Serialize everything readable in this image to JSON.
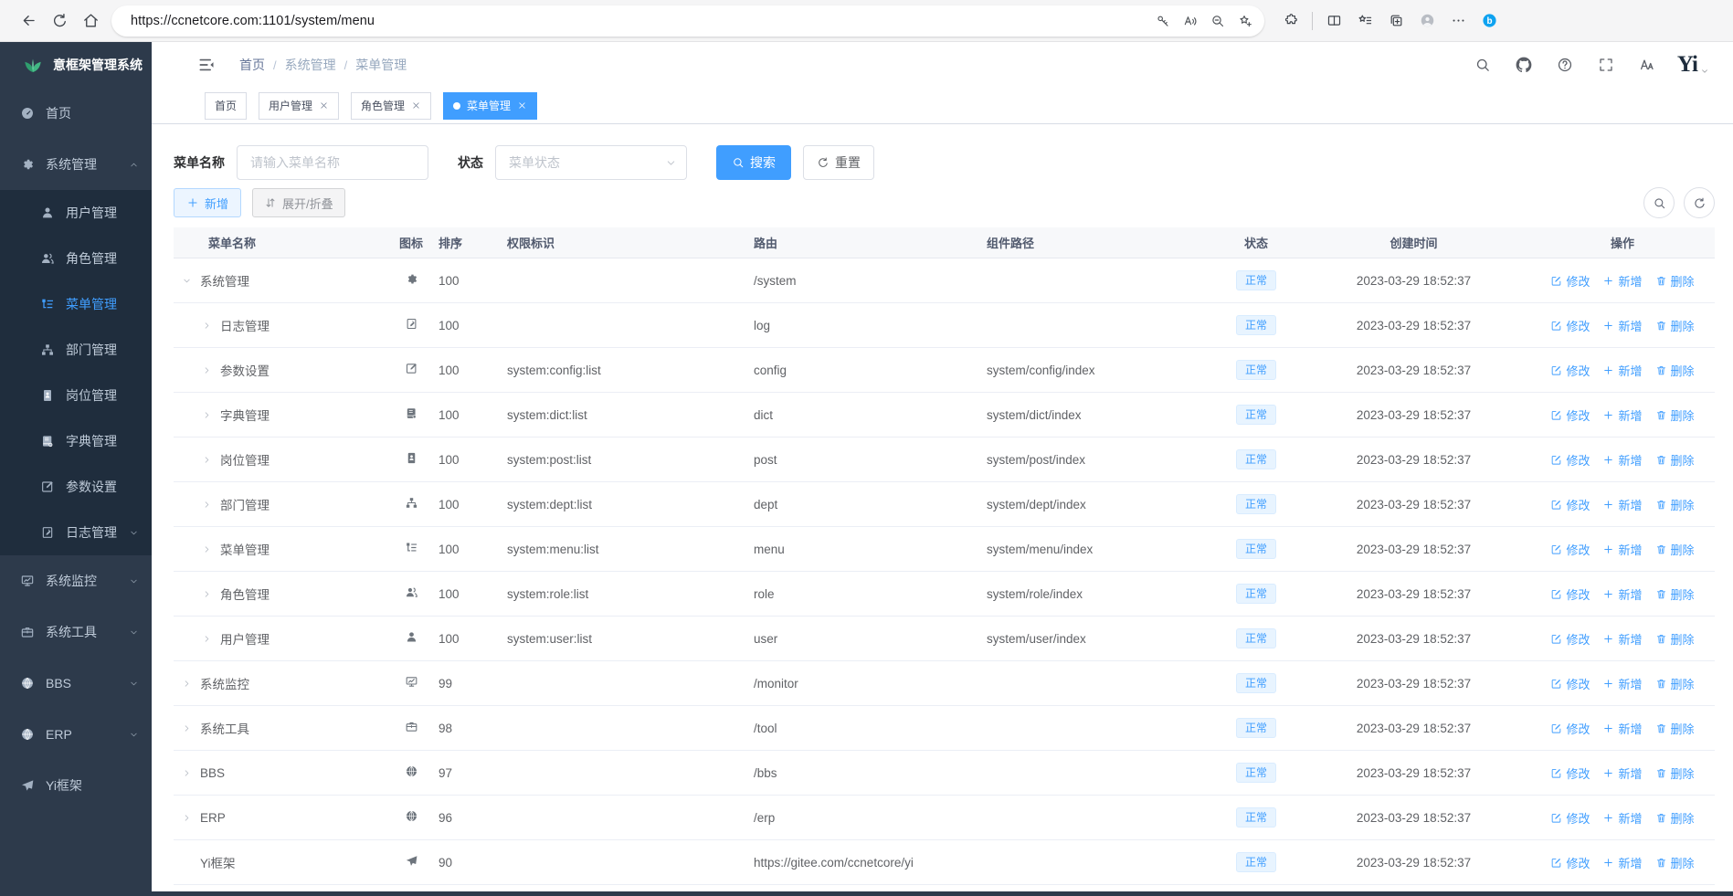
{
  "browser": {
    "url": "https://ccnetcore.com:1101/system/menu",
    "nav_icons": [
      {
        "key": "back",
        "icon": "back-icon"
      },
      {
        "key": "refresh",
        "icon": "refresh-icon"
      },
      {
        "key": "home",
        "icon": "home-icon"
      }
    ],
    "addressbar_icons": [
      {
        "key": "password",
        "icon": "key-icon"
      },
      {
        "key": "read-aloud",
        "icon": "read-aloud-icon"
      },
      {
        "key": "zoom-out",
        "icon": "zoom-out-icon"
      },
      {
        "key": "add-favorite",
        "icon": "star-plus-icon"
      }
    ],
    "toolbar_icons": [
      {
        "key": "extensions",
        "icon": "extensions-icon"
      },
      {
        "key": "split-screen",
        "icon": "split-screen-icon"
      },
      {
        "key": "favorites",
        "icon": "favorites-icon"
      },
      {
        "key": "collections",
        "icon": "collections-icon"
      },
      {
        "key": "profile",
        "icon": "profile-icon"
      },
      {
        "key": "more",
        "icon": "more-icon"
      },
      {
        "key": "bing",
        "icon": "bing-icon"
      }
    ]
  },
  "sidebar": {
    "logo": {
      "text": "意框架管理系统",
      "icon": "leaf-logo-icon"
    },
    "items": [
      {
        "key": "home",
        "label": "首页",
        "icon": "dashboard-icon",
        "level": 0,
        "active": false,
        "arrow": ""
      },
      {
        "key": "system-mgmt",
        "label": "系统管理",
        "icon": "gear-icon",
        "level": 0,
        "active": false,
        "arrow": "up"
      },
      {
        "key": "user-mgmt",
        "label": "用户管理",
        "icon": "user-icon",
        "level": 1,
        "active": false,
        "arrow": ""
      },
      {
        "key": "role-mgmt",
        "label": "角色管理",
        "icon": "users-icon",
        "level": 1,
        "active": false,
        "arrow": ""
      },
      {
        "key": "menu-mgmt",
        "label": "菜单管理",
        "icon": "menu-list-icon",
        "level": 1,
        "active": true,
        "arrow": ""
      },
      {
        "key": "dept-mgmt",
        "label": "部门管理",
        "icon": "org-tree-icon",
        "level": 1,
        "active": false,
        "arrow": ""
      },
      {
        "key": "post-mgmt",
        "label": "岗位管理",
        "icon": "id-card-icon",
        "level": 1,
        "active": false,
        "arrow": ""
      },
      {
        "key": "dict-mgmt",
        "label": "字典管理",
        "icon": "book-icon",
        "level": 1,
        "active": false,
        "arrow": ""
      },
      {
        "key": "config",
        "label": "参数设置",
        "icon": "edit-icon",
        "level": 1,
        "active": false,
        "arrow": ""
      },
      {
        "key": "log-mgmt",
        "label": "日志管理",
        "icon": "log-icon",
        "level": 1,
        "active": false,
        "arrow": "down"
      },
      {
        "key": "monitor",
        "label": "系统监控",
        "icon": "monitor-icon",
        "level": 0,
        "active": false,
        "arrow": "down"
      },
      {
        "key": "tool",
        "label": "系统工具",
        "icon": "briefcase-icon",
        "level": 0,
        "active": false,
        "arrow": "down"
      },
      {
        "key": "bbs",
        "label": "BBS",
        "icon": "globe-icon",
        "level": 0,
        "active": false,
        "arrow": "down"
      },
      {
        "key": "erp",
        "label": "ERP",
        "icon": "globe-icon",
        "level": 0,
        "active": false,
        "arrow": "down"
      },
      {
        "key": "yi-framework",
        "label": "Yi框架",
        "icon": "paper-plane-icon",
        "level": 0,
        "active": false,
        "arrow": ""
      }
    ]
  },
  "header": {
    "breadcrumb": {
      "items": [
        "首页",
        "系统管理",
        "菜单管理"
      ],
      "separator": "/"
    },
    "icons": [
      {
        "key": "search",
        "icon": "search-icon"
      },
      {
        "key": "github",
        "icon": "github-icon"
      },
      {
        "key": "help",
        "icon": "question-icon"
      },
      {
        "key": "fullscreen",
        "icon": "fullscreen-icon"
      },
      {
        "key": "font-size",
        "icon": "font-size-icon"
      }
    ],
    "logo_text": "Yi"
  },
  "tabs": [
    {
      "key": "home",
      "label": "首页",
      "closable": false,
      "active": false
    },
    {
      "key": "user-mgmt",
      "label": "用户管理",
      "closable": true,
      "active": false
    },
    {
      "key": "role-mgmt",
      "label": "角色管理",
      "closable": true,
      "active": false
    },
    {
      "key": "menu-mgmt",
      "label": "菜单管理",
      "closable": true,
      "active": true
    }
  ],
  "filters": {
    "name_label": "菜单名称",
    "name_placeholder": "请输入菜单名称",
    "status_label": "状态",
    "status_placeholder": "菜单状态",
    "search_label": "搜索",
    "reset_label": "重置"
  },
  "toolbar": {
    "add_label": "新增",
    "toggle_label": "展开/折叠"
  },
  "table": {
    "columns": [
      "菜单名称",
      "图标",
      "排序",
      "权限标识",
      "路由",
      "组件路径",
      "状态",
      "创建时间",
      "操作"
    ],
    "actions": [
      {
        "key": "edit",
        "label": "修改",
        "icon": "edit-pen-icon"
      },
      {
        "key": "add",
        "label": "新增",
        "icon": "plus-icon"
      },
      {
        "key": "delete",
        "label": "删除",
        "icon": "trash-icon"
      }
    ],
    "rows": [
      {
        "key": "system-mgmt",
        "name": "系统管理",
        "icon": "gear-icon",
        "level": 0,
        "expand": "down",
        "order": "100",
        "perms": "",
        "route": "/system",
        "component": "",
        "status": "正常",
        "created": "2023-03-29 18:52:37"
      },
      {
        "key": "log-mgmt",
        "name": "日志管理",
        "icon": "log-icon",
        "level": 1,
        "expand": "right",
        "order": "100",
        "perms": "",
        "route": "log",
        "component": "",
        "status": "正常",
        "created": "2023-03-29 18:52:37"
      },
      {
        "key": "config",
        "name": "参数设置",
        "icon": "edit-icon",
        "level": 1,
        "expand": "right",
        "order": "100",
        "perms": "system:config:list",
        "route": "config",
        "component": "system/config/index",
        "status": "正常",
        "created": "2023-03-29 18:52:37"
      },
      {
        "key": "dict-mgmt",
        "name": "字典管理",
        "icon": "book-icon",
        "level": 1,
        "expand": "right",
        "order": "100",
        "perms": "system:dict:list",
        "route": "dict",
        "component": "system/dict/index",
        "status": "正常",
        "created": "2023-03-29 18:52:37"
      },
      {
        "key": "post-mgmt",
        "name": "岗位管理",
        "icon": "id-card-icon",
        "level": 1,
        "expand": "right",
        "order": "100",
        "perms": "system:post:list",
        "route": "post",
        "component": "system/post/index",
        "status": "正常",
        "created": "2023-03-29 18:52:37"
      },
      {
        "key": "dept-mgmt",
        "name": "部门管理",
        "icon": "org-tree-icon",
        "level": 1,
        "expand": "right",
        "order": "100",
        "perms": "system:dept:list",
        "route": "dept",
        "component": "system/dept/index",
        "status": "正常",
        "created": "2023-03-29 18:52:37"
      },
      {
        "key": "menu-mgmt",
        "name": "菜单管理",
        "icon": "menu-list-icon",
        "level": 1,
        "expand": "right",
        "order": "100",
        "perms": "system:menu:list",
        "route": "menu",
        "component": "system/menu/index",
        "status": "正常",
        "created": "2023-03-29 18:52:37"
      },
      {
        "key": "role-mgmt",
        "name": "角色管理",
        "icon": "users-icon",
        "level": 1,
        "expand": "right",
        "order": "100",
        "perms": "system:role:list",
        "route": "role",
        "component": "system/role/index",
        "status": "正常",
        "created": "2023-03-29 18:52:37"
      },
      {
        "key": "user-mgmt",
        "name": "用户管理",
        "icon": "user-icon",
        "level": 1,
        "expand": "right",
        "order": "100",
        "perms": "system:user:list",
        "route": "user",
        "component": "system/user/index",
        "status": "正常",
        "created": "2023-03-29 18:52:37"
      },
      {
        "key": "monitor",
        "name": "系统监控",
        "icon": "monitor-icon",
        "level": 0,
        "expand": "right",
        "order": "99",
        "perms": "",
        "route": "/monitor",
        "component": "",
        "status": "正常",
        "created": "2023-03-29 18:52:37"
      },
      {
        "key": "tool",
        "name": "系统工具",
        "icon": "briefcase-icon",
        "level": 0,
        "expand": "right",
        "order": "98",
        "perms": "",
        "route": "/tool",
        "component": "",
        "status": "正常",
        "created": "2023-03-29 18:52:37"
      },
      {
        "key": "bbs",
        "name": "BBS",
        "icon": "globe-icon",
        "level": 0,
        "expand": "right",
        "order": "97",
        "perms": "",
        "route": "/bbs",
        "component": "",
        "status": "正常",
        "created": "2023-03-29 18:52:37"
      },
      {
        "key": "erp",
        "name": "ERP",
        "icon": "globe-icon",
        "level": 0,
        "expand": "right",
        "order": "96",
        "perms": "",
        "route": "/erp",
        "component": "",
        "status": "正常",
        "created": "2023-03-29 18:52:37"
      },
      {
        "key": "yi-framework",
        "name": "Yi框架",
        "icon": "paper-plane-icon",
        "level": 0,
        "expand": "none",
        "order": "90",
        "perms": "",
        "route": "https://gitee.com/ccnetcore/yi",
        "component": "",
        "status": "正常",
        "created": "2023-03-29 18:52:37"
      }
    ]
  }
}
